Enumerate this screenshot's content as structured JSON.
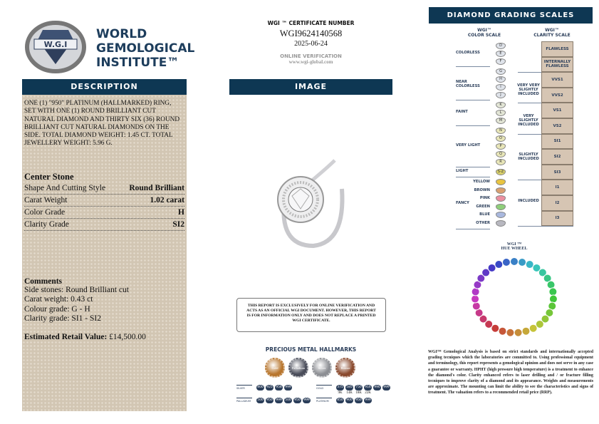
{
  "logo": {
    "seal_text": "WORLD GEMOLOGICAL INSTITUTE",
    "seal_abbr": "W.G.I",
    "line1": "WORLD",
    "line2": "GEMOLOGICAL",
    "line3": "INSTITUTE™"
  },
  "certificate": {
    "label": "WGI ™ CERTIFICATE NUMBER",
    "number": "WGI9624140568",
    "date": "2025-06-24",
    "verify_label": "ONLINE VERIFICATION",
    "verify_url": "www.wgi-global.com"
  },
  "description": {
    "header": "DESCRIPTION",
    "text": "ONE (1) \"950\" PLATINUM (HALLMARKED) RING, SET WITH ONE (1) ROUND BRILLIANT CUT NATURAL DIAMOND AND THIRTY SIX (36) ROUND BRILLIANT CUT NATURAL DIAMONDS ON THE SIDE. TOTAL DIAMOND WEIGHT: 1.45 ct. TOTAL JEWELLERY WEIGHT: 5.96 g.",
    "center_title": "Center Stone",
    "rows": [
      {
        "label": "Shape And Cutting Style",
        "value": "Round Brilliant"
      },
      {
        "label": "Carat Weight",
        "value": "1.02 carat"
      },
      {
        "label": "Color Grade",
        "value": "H"
      },
      {
        "label": "Clarity Grade",
        "value": "SI2"
      }
    ],
    "comments_title": "Comments",
    "comments": [
      "Side stones: Round Brilliant cut",
      "Carat weight: 0.43 ct",
      "Colour grade: G - H",
      "Clarity grade: SI1 - SI2"
    ],
    "retail_label": "Estimated Retail Value:",
    "retail_value": "£14,500.00"
  },
  "image": {
    "header": "IMAGE"
  },
  "notice": "THIS REPORT IS EXCLUSIVELY FOR ONLINE VERIFICATION AND ACTS AS AN OFFICIAL WGI DOCUMENT. HOWEVER, THIS REPORT IS FOR INFORMATION ONLY AND DOES NOT REPLACE A PRINTED WGI CERTIFICATE.",
  "hallmarks": {
    "title": "PRECIOUS METAL HALLMARKS",
    "coins": [
      {
        "label": "Gold",
        "color": "#b8762e"
      },
      {
        "label": "Palladium",
        "color": "#4a4d5a"
      },
      {
        "label": "Silver",
        "color": "#8d8f94"
      },
      {
        "label": "Bronze",
        "color": "#8a4a2e"
      }
    ],
    "silver_label": "SILVER",
    "silver": [
      "800",
      "925",
      "958",
      "999"
    ],
    "palladium_label": "PALLADIUM",
    "palladium": [
      "500",
      "950",
      "999",
      "500",
      "950",
      "999"
    ],
    "gold_label": "GOLD",
    "gold": [
      "375",
      "585",
      "750",
      "916",
      "990",
      "999"
    ],
    "gold_karats": [
      "9K",
      "14K",
      "18K",
      "22K"
    ],
    "platinum_label": "PLATINUM",
    "platinum": [
      "850",
      "900",
      "950",
      "999"
    ]
  },
  "scales": {
    "header": "DIAMOND GRADING SCALES",
    "color_title1": "WGI™",
    "color_title2": "COLOR SCALE",
    "clarity_title1": "WGI™",
    "clarity_title2": "CLARITY SCALE",
    "color_groups": [
      {
        "label": "COLORLESS",
        "letters": [
          "D",
          "E",
          "F"
        ]
      },
      {
        "label": "NEAR COLORLESS",
        "letters": [
          "G",
          "H",
          "I",
          "J"
        ]
      },
      {
        "label": "FAINT",
        "letters": [
          "K",
          "L",
          "M"
        ]
      },
      {
        "label": "VERY LIGHT",
        "letters": [
          "N",
          "O",
          "P",
          "Q",
          "R"
        ]
      },
      {
        "label": "LIGHT",
        "letters": [
          "S-Z"
        ]
      }
    ],
    "fancy_label": "FANCY",
    "fancy": [
      {
        "label": "YELLOW",
        "color": "#e8c440"
      },
      {
        "label": "BROWN",
        "color": "#d9a070"
      },
      {
        "label": "PINK",
        "color": "#ec8fa0"
      },
      {
        "label": "GREEN",
        "color": "#8fcf7a"
      },
      {
        "label": "BLUE",
        "color": "#a9b8de"
      },
      {
        "label": "OTHER",
        "color": "#b8b8c0"
      }
    ],
    "clarity_groups": [
      {
        "label": "",
        "grades": [
          "FLAWLESS",
          "INTERNALLY FLAWLESS"
        ]
      },
      {
        "label": "VERY VERY SLIGHTLY INCLUDED",
        "grades": [
          "VVS1",
          "VVS2"
        ]
      },
      {
        "label": "VERY SLIGHTLY INCLUDED",
        "grades": [
          "VS1",
          "VS2"
        ]
      },
      {
        "label": "SLIGHTLY INCLUDED",
        "grades": [
          "SI1",
          "SI2",
          "SI3"
        ]
      },
      {
        "label": "INCLUDED",
        "grades": [
          "I1",
          "I2",
          "I3"
        ]
      }
    ]
  },
  "hue_wheel": {
    "title1": "WGI ™",
    "title2": "HUE WHEEL"
  },
  "disclaimer": "WGI™ Gemological Analysis is based on strict standards and internationally accepted grading tecniques which the laboratories are committed to. Using professional equipment and terminology, this report represents a gemological opinion and does not serve in any case a guarantee or warranty. HPHT (high pressure high temperature) is a treatment to enhance the diamond's color. Clarity enhanced refers to laser drilling and / or fracture filling tecniques to improve clarity of a diamond and its appearance. Weights and measurements are approximate. The mounting can limit the ability to see the characteristics and signs of treatment. The valuation refers to a recommended retail price (RRP)."
}
